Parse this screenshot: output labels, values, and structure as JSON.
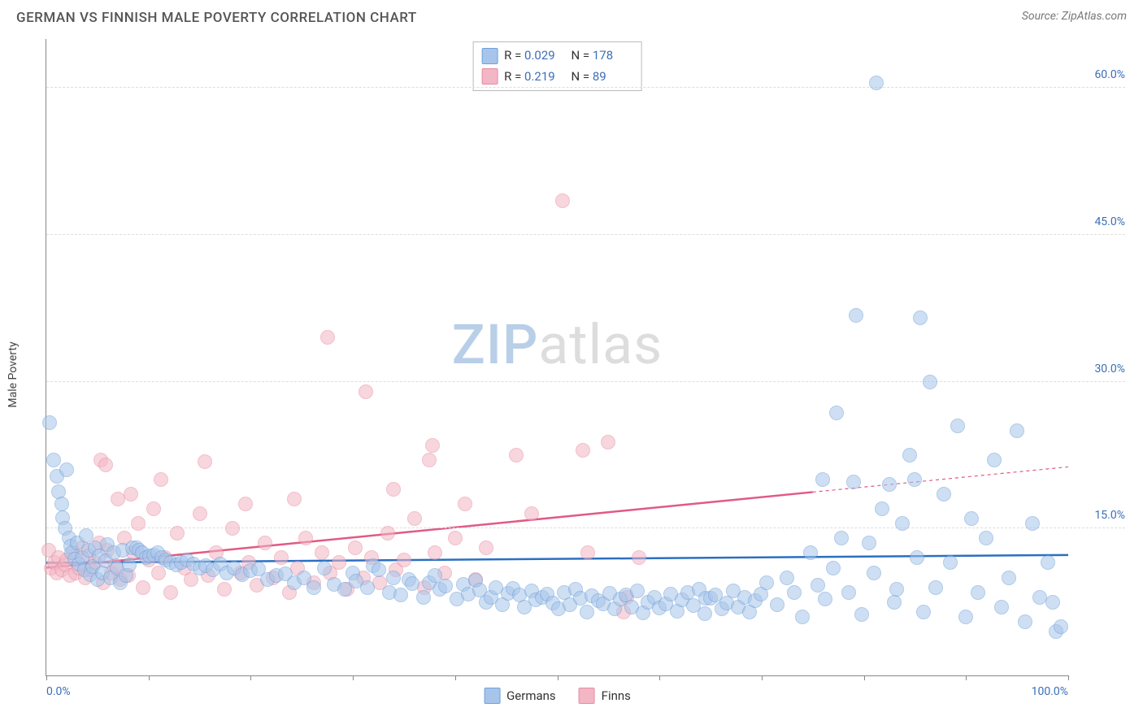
{
  "header": {
    "title": "GERMAN VS FINNISH MALE POVERTY CORRELATION CHART",
    "source_prefix": "Source: ",
    "source_name": "ZipAtlas.com"
  },
  "watermark": {
    "part1": "ZIP",
    "part2": "atlas"
  },
  "chart": {
    "type": "scatter",
    "ylabel": "Male Poverty",
    "xlim": [
      0,
      100
    ],
    "ylim": [
      0,
      65
    ],
    "background_color": "#ffffff",
    "grid_color": "#dddddd",
    "axis_color": "#888888",
    "xtick_positions": [
      0,
      10,
      20,
      30,
      40,
      50,
      60,
      70,
      80,
      90,
      100
    ],
    "xtick_labels": {
      "0": "0.0%",
      "100": "100.0%"
    },
    "xtick_label_color": "#3b6fb6",
    "ytick_positions": [
      15,
      30,
      45,
      60
    ],
    "ytick_labels": {
      "15": "15.0%",
      "30": "30.0%",
      "45": "45.0%",
      "60": "60.0%"
    },
    "ytick_label_color": "#3b6fb6",
    "marker_radius": 9,
    "marker_opacity": 0.55,
    "series": [
      {
        "name": "Germans",
        "fill_color": "#a7c5ea",
        "stroke_color": "#6fa0d8",
        "trend_color": "#2b6fc2",
        "trend_width": 2.5,
        "trend": {
          "x0": 0,
          "y0": 11.5,
          "x1": 100,
          "y1": 12.3,
          "dash_from_x": null
        },
        "stats": {
          "R": "0.029",
          "N": "178"
        },
        "points": [
          [
            0.3,
            25.8
          ],
          [
            0.7,
            22.0
          ],
          [
            1.0,
            20.3
          ],
          [
            1.2,
            18.8
          ],
          [
            1.5,
            17.5
          ],
          [
            1.6,
            16.1
          ],
          [
            1.8,
            15.0
          ],
          [
            2.0,
            21.0
          ],
          [
            2.2,
            14.0
          ],
          [
            2.4,
            13.2
          ],
          [
            2.5,
            12.5
          ],
          [
            2.8,
            11.9
          ],
          [
            3.0,
            13.5
          ],
          [
            3.2,
            11.4
          ],
          [
            3.5,
            12.0
          ],
          [
            3.7,
            10.8
          ],
          [
            3.9,
            14.3
          ],
          [
            4.1,
            12.8
          ],
          [
            4.3,
            10.3
          ],
          [
            4.5,
            11.1
          ],
          [
            4.8,
            13.0
          ],
          [
            5.0,
            9.8
          ],
          [
            5.2,
            12.2
          ],
          [
            5.5,
            10.5
          ],
          [
            5.8,
            11.7
          ],
          [
            6.0,
            13.4
          ],
          [
            6.3,
            10.0
          ],
          [
            6.6,
            12.5
          ],
          [
            6.9,
            11.0
          ],
          [
            7.2,
            9.5
          ],
          [
            7.5,
            12.8
          ],
          [
            7.8,
            10.2
          ],
          [
            8.1,
            11.3
          ],
          [
            8.4,
            13.0
          ],
          [
            8.8,
            13.0
          ],
          [
            9.1,
            12.8
          ],
          [
            9.4,
            12.5
          ],
          [
            9.8,
            12.0
          ],
          [
            10.1,
            12.2
          ],
          [
            10.5,
            12.3
          ],
          [
            10.9,
            12.5
          ],
          [
            11.3,
            12.0
          ],
          [
            11.7,
            11.8
          ],
          [
            12.2,
            11.5
          ],
          [
            12.7,
            11.3
          ],
          [
            13.2,
            11.5
          ],
          [
            13.8,
            11.8
          ],
          [
            14.4,
            11.4
          ],
          [
            15.0,
            11.0
          ],
          [
            15.6,
            11.2
          ],
          [
            16.3,
            10.8
          ],
          [
            17.0,
            11.4
          ],
          [
            17.7,
            10.5
          ],
          [
            18.4,
            11.0
          ],
          [
            19.2,
            10.3
          ],
          [
            20.0,
            10.7
          ],
          [
            20.8,
            10.9
          ],
          [
            21.6,
            9.8
          ],
          [
            22.5,
            10.2
          ],
          [
            23.4,
            10.4
          ],
          [
            24.3,
            9.5
          ],
          [
            25.2,
            10.0
          ],
          [
            26.2,
            9.0
          ],
          [
            27.2,
            11.0
          ],
          [
            28.2,
            9.3
          ],
          [
            29.2,
            8.8
          ],
          [
            30.0,
            10.5
          ],
          [
            30.3,
            9.6
          ],
          [
            31.4,
            9.0
          ],
          [
            32.0,
            11.2
          ],
          [
            32.5,
            10.8
          ],
          [
            33.6,
            8.5
          ],
          [
            34.0,
            10.0
          ],
          [
            34.7,
            8.2
          ],
          [
            35.5,
            9.8
          ],
          [
            35.8,
            9.4
          ],
          [
            36.9,
            8.0
          ],
          [
            37.5,
            9.5
          ],
          [
            38.0,
            10.2
          ],
          [
            38.5,
            8.8
          ],
          [
            39.1,
            9.1
          ],
          [
            40.2,
            7.8
          ],
          [
            40.8,
            9.3
          ],
          [
            41.3,
            8.3
          ],
          [
            42.0,
            9.7
          ],
          [
            42.4,
            8.7
          ],
          [
            43.0,
            7.5
          ],
          [
            43.5,
            8.0
          ],
          [
            44.0,
            9.0
          ],
          [
            44.6,
            7.2
          ],
          [
            45.2,
            8.4
          ],
          [
            45.7,
            8.9
          ],
          [
            46.3,
            8.2
          ],
          [
            46.8,
            7.0
          ],
          [
            47.5,
            8.6
          ],
          [
            47.9,
            7.7
          ],
          [
            48.5,
            8.0
          ],
          [
            49.0,
            8.3
          ],
          [
            49.6,
            7.4
          ],
          [
            50.1,
            6.8
          ],
          [
            50.7,
            8.5
          ],
          [
            51.2,
            7.2
          ],
          [
            51.8,
            8.8
          ],
          [
            52.3,
            7.9
          ],
          [
            52.9,
            6.5
          ],
          [
            53.4,
            8.1
          ],
          [
            54.0,
            7.6
          ],
          [
            54.5,
            7.3
          ],
          [
            55.1,
            8.4
          ],
          [
            55.6,
            6.8
          ],
          [
            56.2,
            7.8
          ],
          [
            56.7,
            8.2
          ],
          [
            57.3,
            7.0
          ],
          [
            57.8,
            8.6
          ],
          [
            58.4,
            6.4
          ],
          [
            58.9,
            7.5
          ],
          [
            59.5,
            8.0
          ],
          [
            60.0,
            6.9
          ],
          [
            60.6,
            7.3
          ],
          [
            61.1,
            8.3
          ],
          [
            61.7,
            6.6
          ],
          [
            62.2,
            7.7
          ],
          [
            62.8,
            8.5
          ],
          [
            63.3,
            7.1
          ],
          [
            63.9,
            8.8
          ],
          [
            64.4,
            6.3
          ],
          [
            64.5,
            7.9
          ],
          [
            65.0,
            7.9
          ],
          [
            65.5,
            8.2
          ],
          [
            66.1,
            6.8
          ],
          [
            66.6,
            7.4
          ],
          [
            67.2,
            8.6
          ],
          [
            67.7,
            7.0
          ],
          [
            68.3,
            8.0
          ],
          [
            68.8,
            6.5
          ],
          [
            69.4,
            7.6
          ],
          [
            69.9,
            8.3
          ],
          [
            70.5,
            9.5
          ],
          [
            71.5,
            7.2
          ],
          [
            72.5,
            10.0
          ],
          [
            73.2,
            8.5
          ],
          [
            74.0,
            6.0
          ],
          [
            74.8,
            12.5
          ],
          [
            75.5,
            9.2
          ],
          [
            76.0,
            20.0
          ],
          [
            76.2,
            7.8
          ],
          [
            77.0,
            11.0
          ],
          [
            77.3,
            26.8
          ],
          [
            77.8,
            14.0
          ],
          [
            78.5,
            8.5
          ],
          [
            79.0,
            19.8
          ],
          [
            79.2,
            36.8
          ],
          [
            79.8,
            6.2
          ],
          [
            80.5,
            13.5
          ],
          [
            81.0,
            10.5
          ],
          [
            81.2,
            60.5
          ],
          [
            81.8,
            17.0
          ],
          [
            82.5,
            19.5
          ],
          [
            83.0,
            7.5
          ],
          [
            83.2,
            8.8
          ],
          [
            83.8,
            15.5
          ],
          [
            84.5,
            22.5
          ],
          [
            85.0,
            20.0
          ],
          [
            85.2,
            12.0
          ],
          [
            85.5,
            36.5
          ],
          [
            85.8,
            6.5
          ],
          [
            86.5,
            30.0
          ],
          [
            87.0,
            9.0
          ],
          [
            87.8,
            18.5
          ],
          [
            88.5,
            11.5
          ],
          [
            89.2,
            25.5
          ],
          [
            90.0,
            6.0
          ],
          [
            90.5,
            16.0
          ],
          [
            91.2,
            8.5
          ],
          [
            92.0,
            14.0
          ],
          [
            92.8,
            22.0
          ],
          [
            93.5,
            7.0
          ],
          [
            94.2,
            10.0
          ],
          [
            95.0,
            25.0
          ],
          [
            95.8,
            5.5
          ],
          [
            96.5,
            15.5
          ],
          [
            97.2,
            8.0
          ],
          [
            98.0,
            11.5
          ],
          [
            98.8,
            4.5
          ],
          [
            98.5,
            7.5
          ],
          [
            99.3,
            5.0
          ]
        ]
      },
      {
        "name": "Finns",
        "fill_color": "#f2b6c4",
        "stroke_color": "#e88ba3",
        "trend_color": "#e15a84",
        "trend_width": 2.5,
        "trend": {
          "x0": 0,
          "y0": 11.0,
          "x1": 100,
          "y1": 21.3,
          "dash_from_x": 75
        },
        "stats": {
          "R": "0.219",
          "N": "89"
        },
        "points": [
          [
            0.2,
            12.8
          ],
          [
            0.5,
            11.0
          ],
          [
            0.8,
            11.5
          ],
          [
            1.0,
            10.5
          ],
          [
            1.2,
            12.0
          ],
          [
            1.5,
            10.8
          ],
          [
            1.8,
            11.3
          ],
          [
            2.0,
            11.8
          ],
          [
            2.3,
            10.2
          ],
          [
            2.6,
            12.5
          ],
          [
            2.9,
            10.5
          ],
          [
            3.2,
            11.0
          ],
          [
            3.5,
            13.0
          ],
          [
            3.8,
            10.0
          ],
          [
            4.1,
            12.2
          ],
          [
            4.4,
            10.8
          ],
          [
            4.8,
            11.5
          ],
          [
            5.2,
            13.5
          ],
          [
            5.3,
            22.0
          ],
          [
            5.6,
            9.5
          ],
          [
            5.8,
            21.5
          ],
          [
            6.0,
            12.8
          ],
          [
            6.4,
            10.5
          ],
          [
            6.8,
            11.2
          ],
          [
            7.0,
            18.0
          ],
          [
            7.2,
            9.8
          ],
          [
            7.6,
            14.0
          ],
          [
            8.0,
            10.2
          ],
          [
            8.3,
            18.5
          ],
          [
            8.5,
            12.5
          ],
          [
            9.0,
            15.5
          ],
          [
            9.5,
            9.0
          ],
          [
            10.0,
            11.8
          ],
          [
            10.5,
            17.0
          ],
          [
            11.0,
            10.5
          ],
          [
            11.2,
            20.0
          ],
          [
            11.6,
            12.0
          ],
          [
            12.2,
            8.5
          ],
          [
            12.8,
            14.5
          ],
          [
            13.5,
            11.0
          ],
          [
            14.2,
            9.8
          ],
          [
            15.0,
            16.5
          ],
          [
            15.5,
            21.8
          ],
          [
            15.8,
            10.2
          ],
          [
            16.6,
            12.5
          ],
          [
            17.4,
            8.8
          ],
          [
            18.2,
            15.0
          ],
          [
            19.0,
            10.5
          ],
          [
            19.5,
            17.5
          ],
          [
            19.8,
            11.5
          ],
          [
            20.6,
            9.2
          ],
          [
            21.4,
            13.5
          ],
          [
            22.2,
            10.0
          ],
          [
            23.0,
            12.0
          ],
          [
            23.8,
            8.5
          ],
          [
            24.3,
            18.0
          ],
          [
            24.6,
            11.0
          ],
          [
            25.4,
            14.0
          ],
          [
            26.2,
            9.5
          ],
          [
            27.0,
            12.5
          ],
          [
            27.5,
            34.5
          ],
          [
            27.8,
            10.5
          ],
          [
            28.6,
            11.5
          ],
          [
            29.4,
            8.8
          ],
          [
            30.2,
            13.0
          ],
          [
            31.0,
            10.0
          ],
          [
            31.3,
            29.0
          ],
          [
            31.8,
            12.0
          ],
          [
            32.6,
            9.5
          ],
          [
            33.4,
            14.5
          ],
          [
            34.0,
            19.0
          ],
          [
            34.2,
            10.8
          ],
          [
            35.0,
            11.8
          ],
          [
            36.0,
            16.0
          ],
          [
            37.0,
            9.0
          ],
          [
            37.5,
            22.0
          ],
          [
            37.8,
            23.5
          ],
          [
            38.0,
            12.5
          ],
          [
            39.0,
            10.5
          ],
          [
            40.0,
            14.0
          ],
          [
            41.0,
            17.5
          ],
          [
            42.0,
            9.8
          ],
          [
            43.0,
            13.0
          ],
          [
            46.0,
            22.5
          ],
          [
            47.5,
            16.5
          ],
          [
            50.5,
            48.5
          ],
          [
            52.5,
            23.0
          ],
          [
            53.0,
            12.5
          ],
          [
            55.0,
            23.8
          ],
          [
            56.5,
            6.5
          ],
          [
            56.8,
            8.0
          ],
          [
            58.0,
            12.0
          ]
        ]
      }
    ],
    "legend": [
      {
        "label": "Germans",
        "fill": "#a7c5ea",
        "stroke": "#6fa0d8"
      },
      {
        "label": "Finns",
        "fill": "#f2b6c4",
        "stroke": "#e88ba3"
      }
    ],
    "stats_value_color": "#3b6fb6"
  }
}
